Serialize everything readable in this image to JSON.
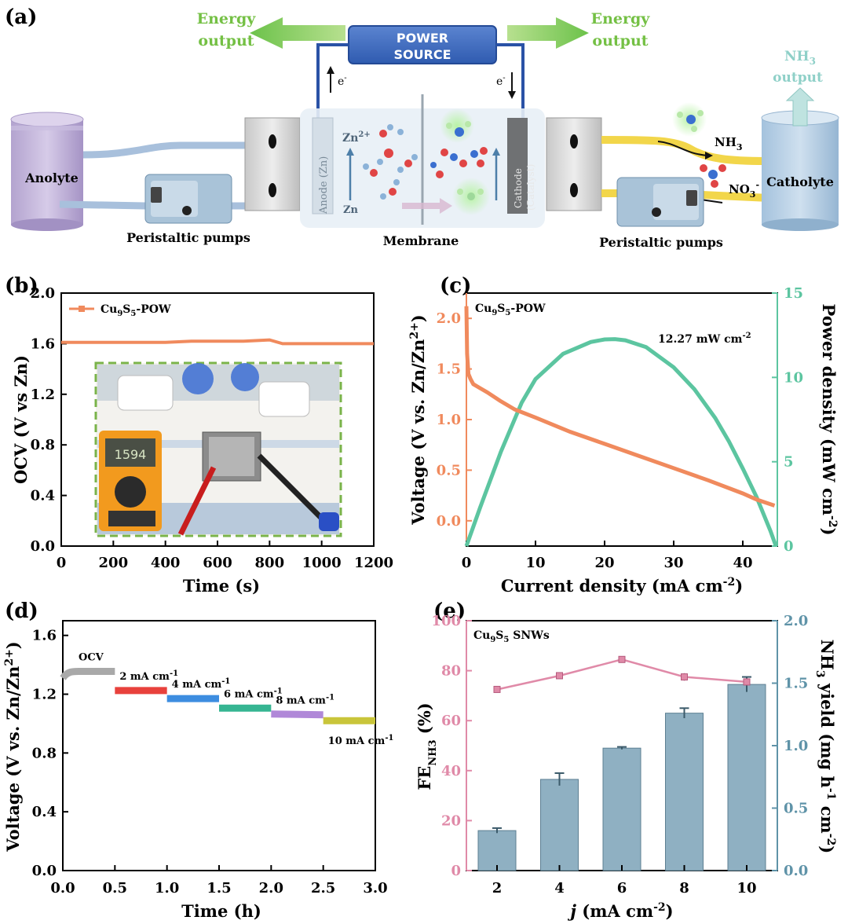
{
  "panel_labels": [
    "(a)",
    "(b)",
    "(c)",
    "(d)",
    "(e)"
  ],
  "schematic": {
    "power_source": [
      "POWER",
      "SOURCE"
    ],
    "energy_output": [
      "Energy",
      "output"
    ],
    "nh3_output": [
      "NH",
      "3",
      "output"
    ],
    "anolyte": "Anolyte",
    "catholyte": "Catholyte",
    "peristaltic_pumps": "Peristaltic pumps",
    "membrane": "Membrane",
    "anode": "Anode (Zn)",
    "cathode": [
      "Cathode",
      "(Catalyst)"
    ],
    "electron": "e",
    "zn2": "Zn",
    "zn2_sup": "2+",
    "zn": "Zn",
    "nh3": [
      "NH",
      "3"
    ],
    "no3": [
      "NO",
      "3",
      "-"
    ]
  },
  "chart_data": [
    {
      "id": "b",
      "type": "line",
      "series": [
        {
          "name": "Cu9S5-POW",
          "x": [
            0,
            100,
            200,
            300,
            400,
            500,
            600,
            700,
            800,
            850,
            900,
            1000,
            1100,
            1200
          ],
          "values": [
            1.61,
            1.61,
            1.61,
            1.61,
            1.61,
            1.62,
            1.62,
            1.62,
            1.63,
            1.6,
            1.6,
            1.6,
            1.6,
            1.6
          ],
          "color": "#f08a5d"
        }
      ],
      "legend": {
        "text": [
          "Cu",
          "9",
          "S",
          "5",
          "-POW"
        ]
      },
      "xlabel": "Time (s)",
      "ylabel": "OCV (V vs Zn)",
      "xticks": [
        "0",
        "200",
        "400",
        "600",
        "800",
        "1000",
        "1200"
      ],
      "yticks": [
        "0.0",
        "0.4",
        "0.8",
        "1.2",
        "1.6",
        "2.0"
      ],
      "xlim": [
        0,
        1200
      ],
      "ylim": [
        0,
        2.0
      ],
      "inset": "photo of the device with multimeter reading",
      "meter_reading": "1594"
    },
    {
      "id": "c",
      "type": "line",
      "title": [
        "Cu",
        "9",
        "S",
        "5",
        "-POW"
      ],
      "annotation": [
        "12.27 mW cm",
        "-2"
      ],
      "xlabel": [
        "Current density (mA cm",
        "-2",
        ")"
      ],
      "ylabel_left": [
        "Voltage (V vs. Zn/Zn",
        "2+",
        ")"
      ],
      "ylabel_right": [
        "Power density (mW cm",
        "-2",
        ")"
      ],
      "xticks": [
        "0",
        "10",
        "20",
        "30",
        "40"
      ],
      "yticks_left": [
        "0.0",
        "0.5",
        "1.0",
        "1.5",
        "2.0"
      ],
      "yticks_right": [
        "0",
        "5",
        "10",
        "15"
      ],
      "xlim": [
        0,
        45
      ],
      "ylim_left": [
        -0.25,
        2.25
      ],
      "ylim_right": [
        0,
        15
      ],
      "series": [
        {
          "name": "Voltage",
          "axis": "left",
          "color": "#f08a5d",
          "x": [
            0,
            0.1,
            0.3,
            0.6,
            1,
            2,
            3,
            5,
            7,
            10,
            15,
            20,
            25,
            30,
            35,
            40,
            42,
            44.6
          ],
          "values": [
            2.12,
            1.65,
            1.45,
            1.4,
            1.35,
            1.31,
            1.27,
            1.18,
            1.1,
            1.02,
            0.88,
            0.76,
            0.64,
            0.52,
            0.4,
            0.27,
            0.21,
            0.15
          ]
        },
        {
          "name": "Power density",
          "axis": "right",
          "color": "#5cc5a0",
          "x": [
            0,
            2,
            5,
            8,
            10,
            14,
            18,
            20,
            21.5,
            23,
            26,
            30,
            33,
            36,
            38,
            40,
            42,
            43,
            44,
            44.8
          ],
          "values": [
            0,
            2.3,
            5.6,
            8.5,
            9.9,
            11.4,
            12.1,
            12.25,
            12.27,
            12.2,
            11.8,
            10.6,
            9.3,
            7.6,
            6.2,
            4.6,
            2.9,
            1.9,
            0.9,
            0.0
          ]
        }
      ]
    },
    {
      "id": "d",
      "type": "line",
      "xlabel": "Time (h)",
      "ylabel": [
        "Voltage (V vs. Zn/Zn",
        "2+",
        ")"
      ],
      "xticks": [
        "0.0",
        "0.5",
        "1.0",
        "1.5",
        "2.0",
        "2.5",
        "3.0"
      ],
      "yticks": [
        "0.0",
        "0.4",
        "0.8",
        "1.2",
        "1.6"
      ],
      "xlim": [
        0,
        3.0
      ],
      "ylim": [
        0,
        1.7
      ],
      "segments": [
        {
          "label": "OCV",
          "x0": 0.0,
          "x1": 0.5,
          "y0": 1.31,
          "y1": 1.355,
          "color": "#a9a9a9"
        },
        {
          "label": [
            "2 mA cm",
            "-1"
          ],
          "x0": 0.5,
          "x1": 1.0,
          "y0": 1.225,
          "y1": 1.225,
          "color": "#e8413c"
        },
        {
          "label": [
            "4 mA cm",
            "-1"
          ],
          "x0": 1.0,
          "x1": 1.5,
          "y0": 1.17,
          "y1": 1.17,
          "color": "#3d8de0"
        },
        {
          "label": [
            "6 mA cm",
            "-1"
          ],
          "x0": 1.5,
          "x1": 2.0,
          "y0": 1.105,
          "y1": 1.105,
          "color": "#36b592"
        },
        {
          "label": [
            "8 mA cm",
            "-1"
          ],
          "x0": 2.0,
          "x1": 2.5,
          "y0": 1.065,
          "y1": 1.06,
          "color": "#b088d8"
        },
        {
          "label": [
            "10 mA cm",
            "-1"
          ],
          "x0": 2.5,
          "x1": 3.0,
          "y0": 1.02,
          "y1": 1.02,
          "color": "#c9c53a"
        }
      ]
    },
    {
      "id": "e",
      "type": "bar",
      "title": [
        "Cu",
        "9",
        "S",
        "5",
        " SNWs"
      ],
      "categories": [
        "2",
        "4",
        "6",
        "8",
        "10"
      ],
      "xlabel": [
        "j",
        "  (mA cm",
        "-2",
        ")"
      ],
      "ylabel_left": [
        "FE",
        "NH3",
        " (%)"
      ],
      "ylabel_right": [
        "NH",
        "3",
        " yield (mg h",
        "-1",
        " cm",
        "-2",
        ")"
      ],
      "yticks_left": [
        "0",
        "20",
        "40",
        "60",
        "80",
        "100"
      ],
      "yticks_right": [
        "0.0",
        "0.5",
        "1.0",
        "1.5",
        "2.0"
      ],
      "ylim_left": [
        0,
        100
      ],
      "ylim_right": [
        0,
        2.0
      ],
      "series": [
        {
          "name": "NH3 yield",
          "axis": "right",
          "color": "#8fb0c2",
          "values": [
            0.32,
            0.73,
            0.98,
            1.26,
            1.49
          ],
          "errors": [
            0.02,
            0.05,
            0.01,
            0.04,
            0.06
          ]
        },
        {
          "name": "FE NH3",
          "axis": "left",
          "color": "#e08aa8",
          "values": [
            72.5,
            78.0,
            84.5,
            77.5,
            75.5
          ],
          "errors": [
            0.8,
            0.8,
            1.2,
            1.5,
            1.0
          ]
        }
      ]
    }
  ]
}
